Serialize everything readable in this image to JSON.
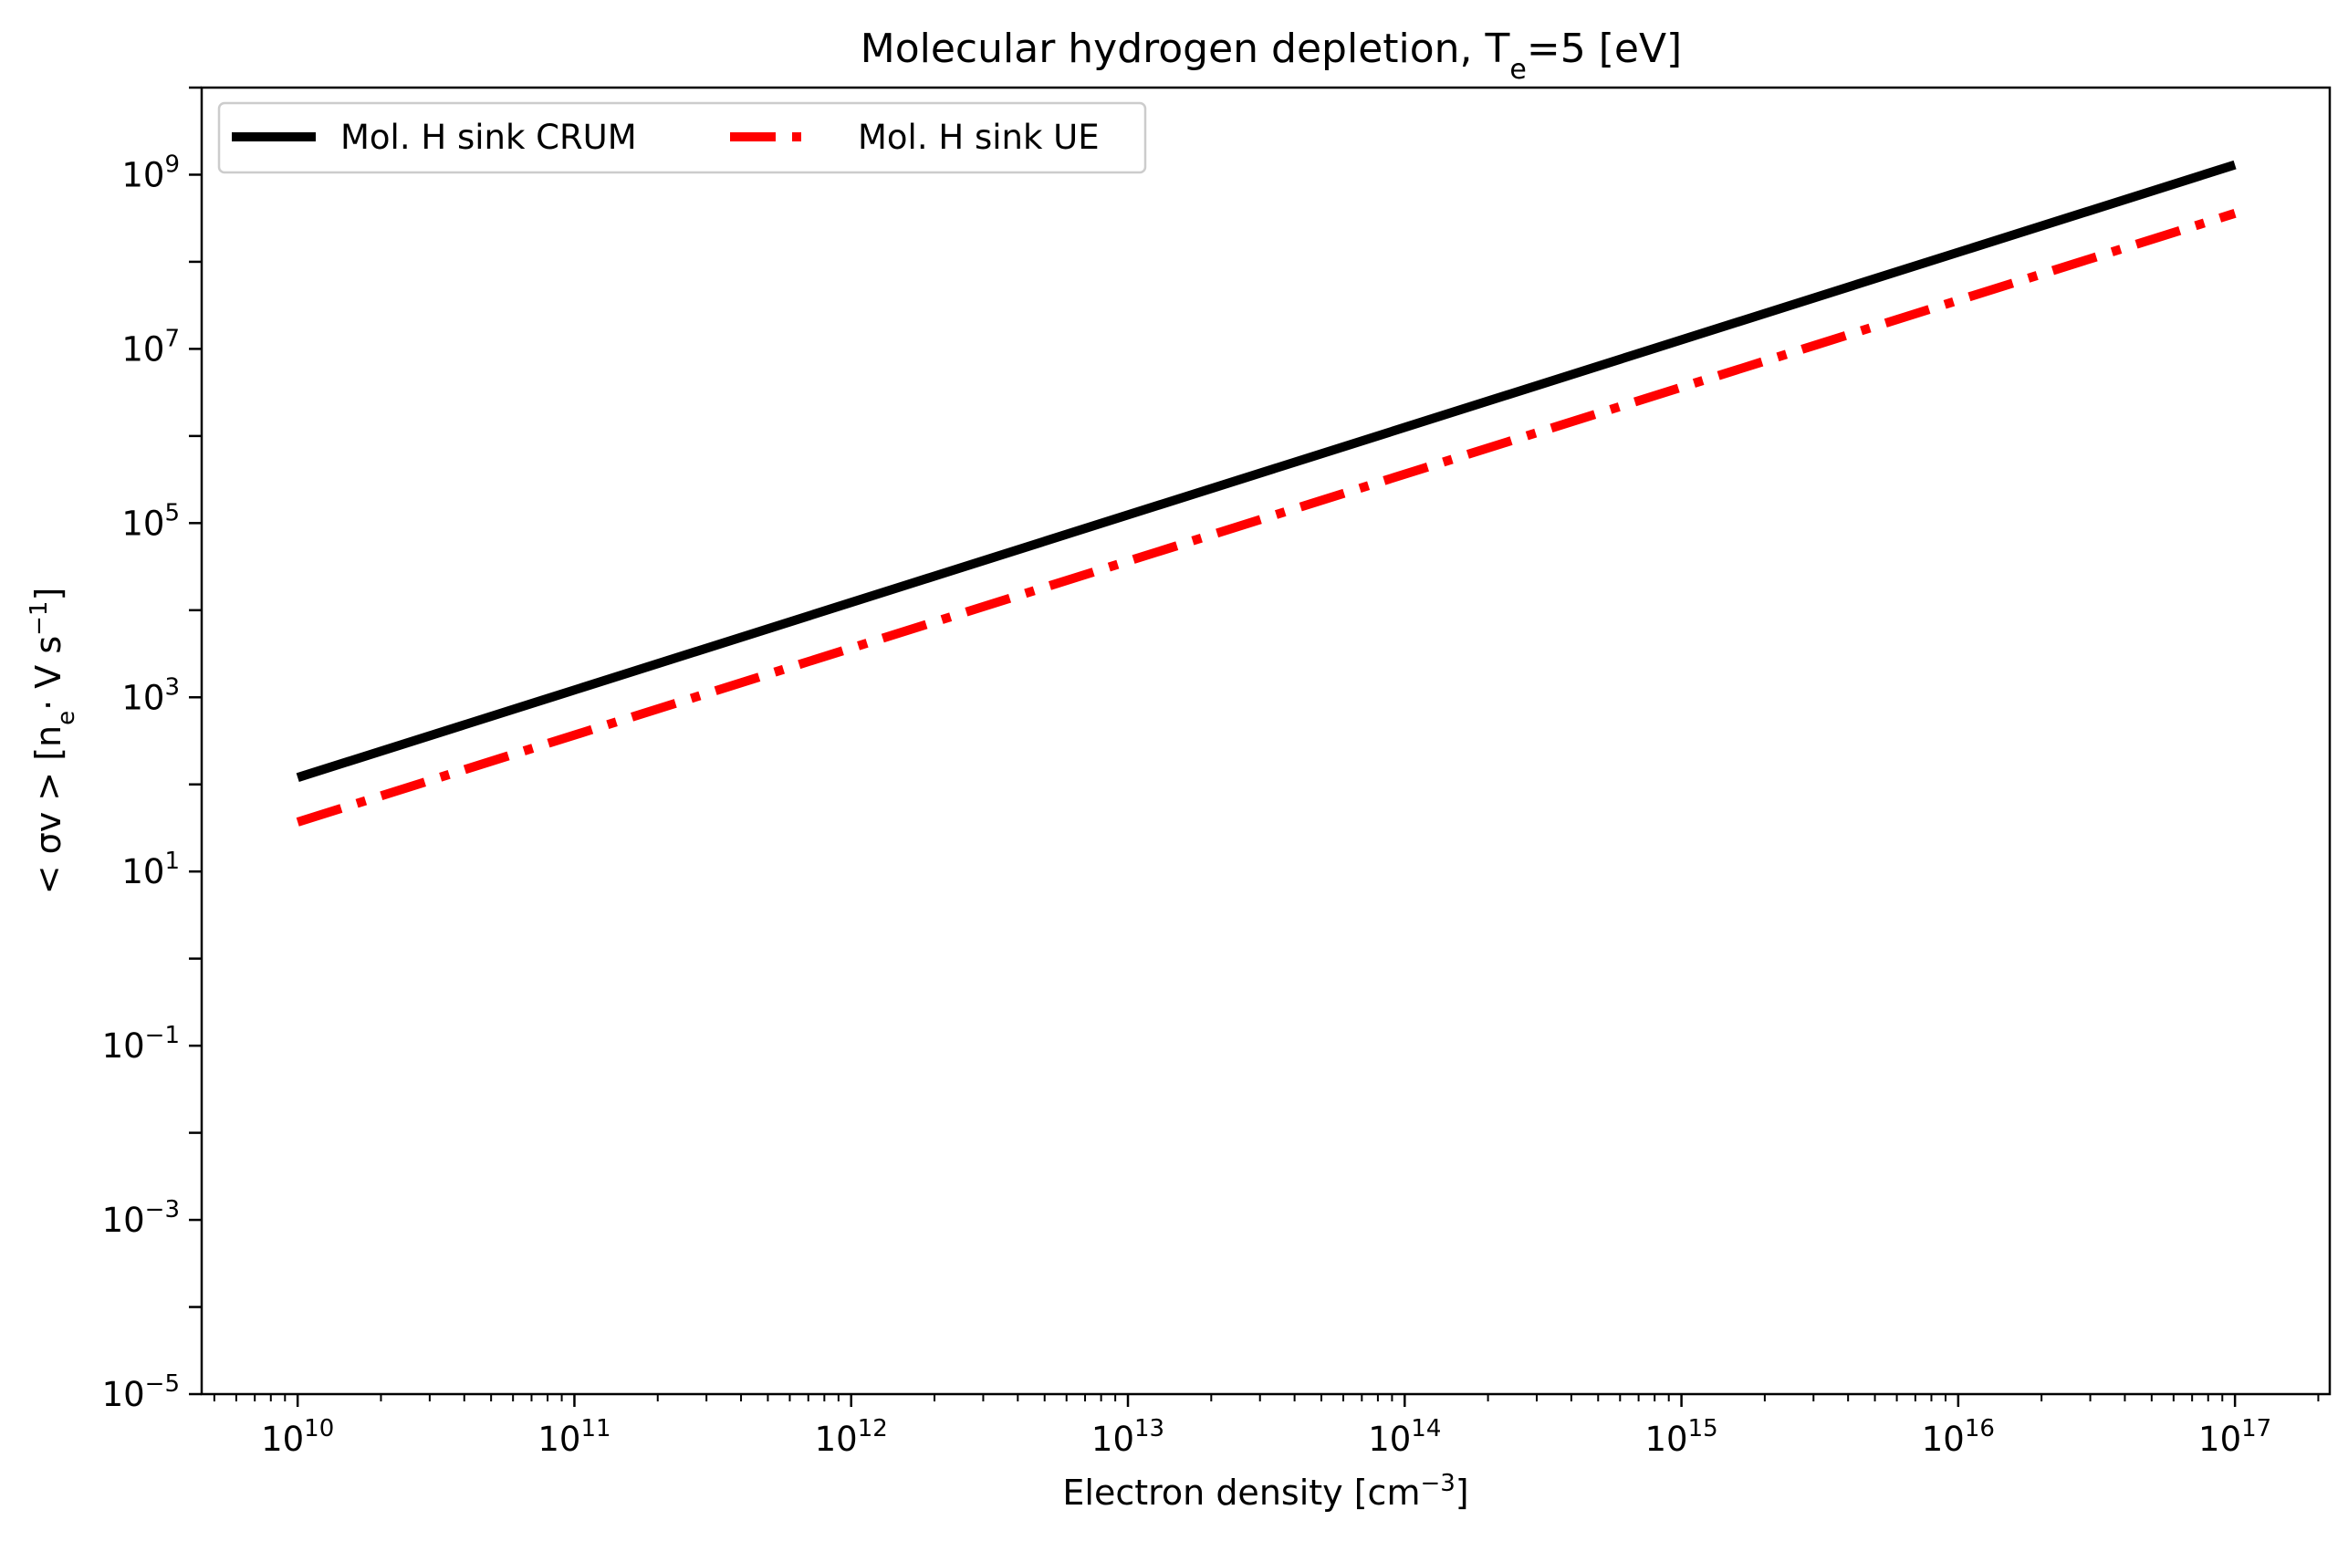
{
  "chart_data": {
    "type": "line",
    "title": "Molecular hydrogen depletion, T",
    "title_sub": "e",
    "title_tail": "=5 [eV]",
    "xlabel": "Electron density [cm",
    "xlabel_sup": "−3",
    "xlabel_tail": "]",
    "ylabel": "< σv > [n",
    "ylabel_sub": "e",
    "ylabel_mid": "· V  s",
    "ylabel_sup": "−1",
    "ylabel_tail": "]",
    "x_scale": "log",
    "y_scale": "log",
    "xlim": [
      4500000000.0,
      2.2e+17
    ],
    "ylim": [
      1e-05,
      10000000000.0
    ],
    "x_ticks": [
      {
        "base": "10",
        "exp": "10",
        "value": 10000000000.0
      },
      {
        "base": "10",
        "exp": "11",
        "value": 100000000000.0
      },
      {
        "base": "10",
        "exp": "12",
        "value": 1000000000000.0
      },
      {
        "base": "10",
        "exp": "13",
        "value": 10000000000000.0
      },
      {
        "base": "10",
        "exp": "14",
        "value": 100000000000000.0
      },
      {
        "base": "10",
        "exp": "15",
        "value": 1000000000000000.0
      },
      {
        "base": "10",
        "exp": "16",
        "value": 1e+16
      },
      {
        "base": "10",
        "exp": "17",
        "value": 1e+17
      }
    ],
    "y_ticks": [
      {
        "base": "10",
        "exp": "−5",
        "value": 1e-05
      },
      {
        "base": "10",
        "exp": "−3",
        "value": 0.001
      },
      {
        "base": "10",
        "exp": "−1",
        "value": 0.1
      },
      {
        "base": "10",
        "exp": "1",
        "value": 10.0
      },
      {
        "base": "10",
        "exp": "3",
        "value": 1000.0
      },
      {
        "base": "10",
        "exp": "5",
        "value": 100000.0
      },
      {
        "base": "10",
        "exp": "7",
        "value": 10000000.0
      },
      {
        "base": "10",
        "exp": "9",
        "value": 1000000000.0
      }
    ],
    "grid": false,
    "legend_position": "top-left",
    "legend_columns": 2,
    "series": [
      {
        "name": "Mol. H sink CRUM",
        "color": "#000000",
        "line_style": "solid",
        "x": [
          10000000000.0,
          1e+17
        ],
        "y": [
          120,
          1300000000.0
        ]
      },
      {
        "name": "Mol. H sink UE",
        "color": "#ff0000",
        "line_style": "dashdot",
        "x": [
          10000000000.0,
          1e+17
        ],
        "y": [
          37,
          360000000.0
        ]
      }
    ]
  }
}
